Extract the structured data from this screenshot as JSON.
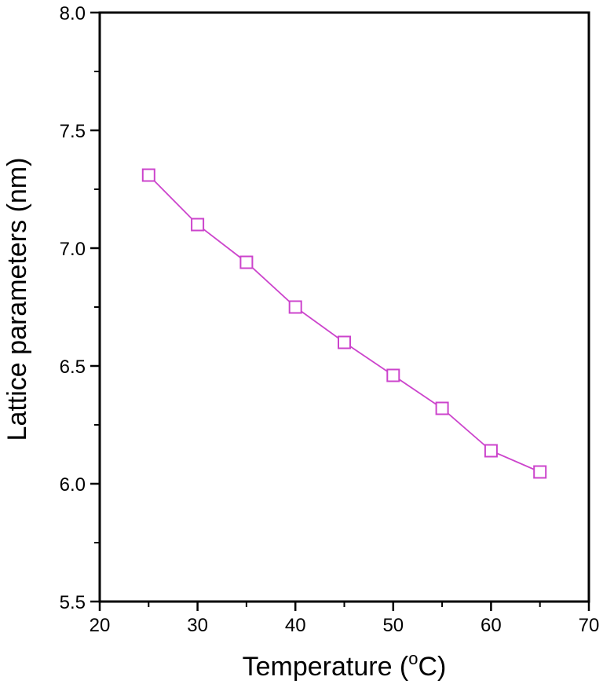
{
  "chart_data": {
    "type": "line",
    "title": "",
    "xlabel": "Temperature (°C)",
    "xlabel_parts": {
      "prefix": "Temperature (",
      "sup": "o",
      "suffix": "C)"
    },
    "ylabel": "Lattice parameters (nm)",
    "xlim": [
      20,
      70
    ],
    "ylim": [
      5.5,
      8.0
    ],
    "xticks": [
      20,
      30,
      40,
      50,
      60,
      70
    ],
    "yticks": [
      5.5,
      6.0,
      6.5,
      7.0,
      7.5,
      8.0
    ],
    "ytick_labels": [
      "5.5",
      "6.0",
      "6.5",
      "7.0",
      "7.5",
      "8.0"
    ],
    "grid": false,
    "marker": "open-square",
    "series": [
      {
        "color": "#cc44cc",
        "x": [
          25,
          30,
          35,
          40,
          45,
          50,
          55,
          60,
          65
        ],
        "y": [
          7.31,
          7.1,
          6.94,
          6.75,
          6.6,
          6.46,
          6.32,
          6.14,
          6.05
        ]
      }
    ]
  }
}
